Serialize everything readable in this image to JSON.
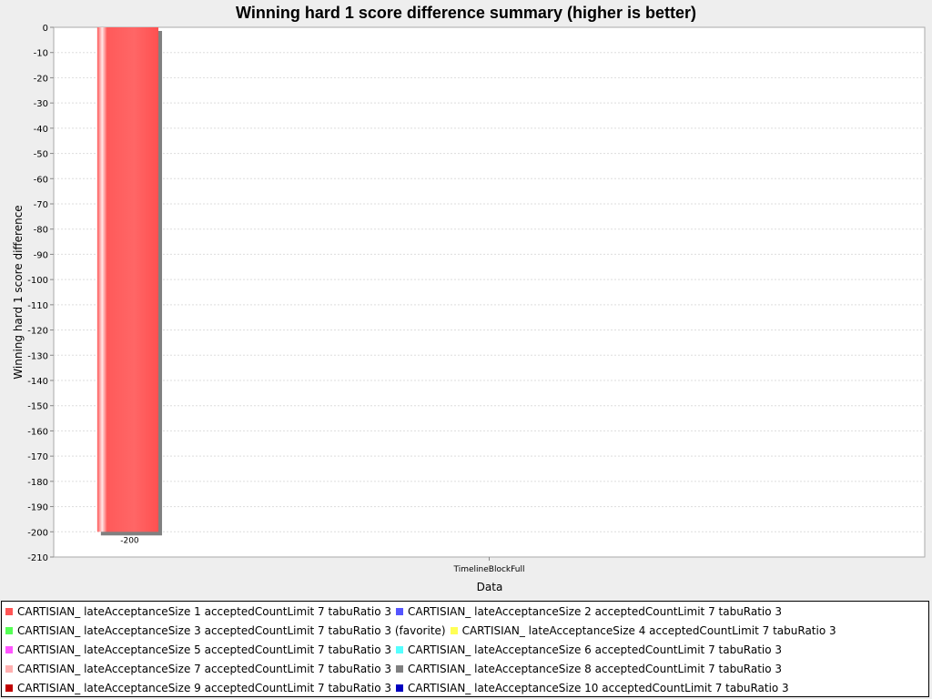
{
  "chart_data": {
    "type": "bar",
    "title": "Winning hard 1 score difference summary (higher is better)",
    "xlabel": "Data",
    "ylabel": "Winning hard 1 score difference",
    "categories": [
      "TimelineBlockFull"
    ],
    "ylim": [
      -210,
      0
    ],
    "ytick_step": 10,
    "grid": true,
    "legend_position": "bottom",
    "series": [
      {
        "name": "CARTISIAN_ lateAcceptanceSize 1 acceptedCountLimit 7 tabuRatio 3",
        "color": "#ff5555",
        "values": [
          -200
        ]
      },
      {
        "name": "CARTISIAN_ lateAcceptanceSize 2 acceptedCountLimit 7 tabuRatio 3",
        "color": "#5555ff",
        "values": [
          null
        ]
      },
      {
        "name": "CARTISIAN_ lateAcceptanceSize 3 acceptedCountLimit 7 tabuRatio 3 (favorite)",
        "color": "#55ff55",
        "values": [
          null
        ]
      },
      {
        "name": "CARTISIAN_ lateAcceptanceSize 4 acceptedCountLimit 7 tabuRatio 3",
        "color": "#ffff55",
        "values": [
          null
        ]
      },
      {
        "name": "CARTISIAN_ lateAcceptanceSize 5 acceptedCountLimit 7 tabuRatio 3",
        "color": "#ff55ff",
        "values": [
          null
        ]
      },
      {
        "name": "CARTISIAN_ lateAcceptanceSize 6 acceptedCountLimit 7 tabuRatio 3",
        "color": "#55ffff",
        "values": [
          null
        ]
      },
      {
        "name": "CARTISIAN_ lateAcceptanceSize 7 acceptedCountLimit 7 tabuRatio 3",
        "color": "#ffafaf",
        "values": [
          null
        ]
      },
      {
        "name": "CARTISIAN_ lateAcceptanceSize 8 acceptedCountLimit 7 tabuRatio 3",
        "color": "#808080",
        "values": [
          null
        ]
      },
      {
        "name": "CARTISIAN_ lateAcceptanceSize 9 acceptedCountLimit 7 tabuRatio 3",
        "color": "#c00000",
        "values": [
          null
        ]
      },
      {
        "name": "CARTISIAN_ lateAcceptanceSize 10 acceptedCountLimit 7 tabuRatio 3",
        "color": "#0000c0",
        "values": [
          null
        ]
      }
    ],
    "data_labels": [
      "-200"
    ]
  }
}
